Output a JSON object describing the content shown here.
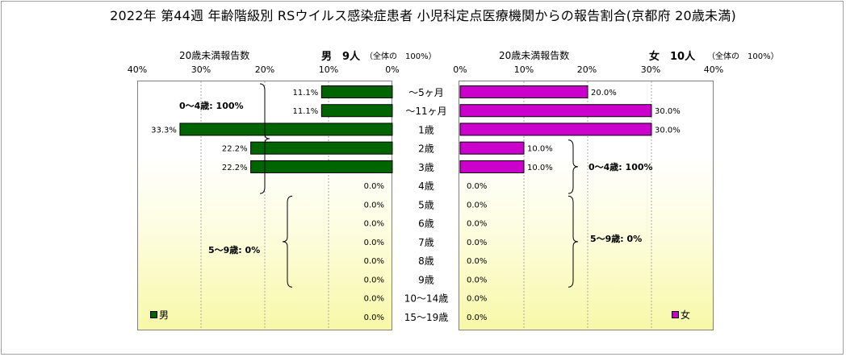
{
  "title": "2022年 第44週 年齢階級別 RSウイルス感染症患者 小児科定点医療機関からの報告割合(京都府 20歳未満)",
  "male_header": {
    "caption": "20歳未満報告数",
    "label": "男　9人",
    "note": "（全体の　100%）"
  },
  "female_header": {
    "caption": "20歳未満報告数",
    "label": "女　10人",
    "note": "（全体の　100%）"
  },
  "legend": {
    "male": "男",
    "female": "女"
  },
  "chart_data": {
    "type": "bar",
    "title": "2022年 第44週 年齢階級別 RSウイルス感染症患者 小児科定点医療機関からの報告割合(京都府 20歳未満)",
    "categories": [
      "～5ヶ月",
      "～11ヶ月",
      "1歳",
      "2歳",
      "3歳",
      "4歳",
      "5歳",
      "6歳",
      "7歳",
      "8歳",
      "9歳",
      "10～14歳",
      "15～19歳"
    ],
    "xlim": [
      0,
      40
    ],
    "ticks": [
      "40%",
      "30%",
      "20%",
      "10%",
      "0%",
      "10%",
      "20%",
      "30%",
      "40%"
    ],
    "series": [
      {
        "name": "男",
        "color": "#006400",
        "values": [
          11.1,
          11.1,
          33.3,
          22.2,
          22.2,
          0,
          0,
          0,
          0,
          0,
          0,
          0,
          0
        ],
        "labels": [
          "11.1%",
          "11.1%",
          "33.3%",
          "22.2%",
          "22.2%",
          "0.0%",
          "0.0%",
          "0.0%",
          "0.0%",
          "0.0%",
          "0.0%",
          "0.0%",
          "0.0%"
        ]
      },
      {
        "name": "女",
        "color": "#cc00cc",
        "values": [
          20.0,
          30.0,
          30.0,
          10.0,
          10.0,
          0,
          0,
          0,
          0,
          0,
          0,
          0,
          0
        ],
        "labels": [
          "20.0%",
          "30.0%",
          "30.0%",
          "10.0%",
          "10.0%",
          "0.0%",
          "0.0%",
          "0.0%",
          "0.0%",
          "0.0%",
          "0.0%",
          "0.0%",
          "0.0%"
        ]
      }
    ],
    "annotations": {
      "male": [
        "0～4歳: 100%",
        "5～9歳: 0%"
      ],
      "female": [
        "0～4歳: 100%",
        "5～9歳: 0%"
      ]
    }
  }
}
